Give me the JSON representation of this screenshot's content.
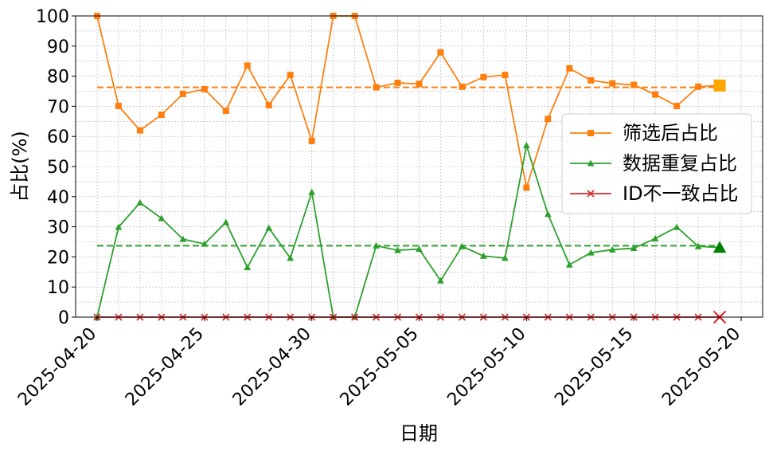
{
  "chart_data": {
    "type": "line",
    "xlabel": "日期",
    "ylabel": "占比(%)",
    "ylim": [
      0,
      100
    ],
    "yticks": [
      0,
      10,
      20,
      30,
      40,
      50,
      60,
      70,
      80,
      90,
      100
    ],
    "xlim": [
      "2025-04-19",
      "2025-05-21"
    ],
    "xticks": [
      "2025-04-20",
      "2025-04-25",
      "2025-04-30",
      "2025-05-05",
      "2025-05-10",
      "2025-05-15",
      "2025-05-20"
    ],
    "grid": true,
    "legend_position": "center-right",
    "x": [
      "2025-04-20",
      "2025-04-21",
      "2025-04-22",
      "2025-04-23",
      "2025-04-24",
      "2025-04-25",
      "2025-04-26",
      "2025-04-27",
      "2025-04-28",
      "2025-04-29",
      "2025-04-30",
      "2025-05-01",
      "2025-05-02",
      "2025-05-03",
      "2025-05-04",
      "2025-05-05",
      "2025-05-06",
      "2025-05-07",
      "2025-05-08",
      "2025-05-09",
      "2025-05-10",
      "2025-05-11",
      "2025-05-12",
      "2025-05-13",
      "2025-05-14",
      "2025-05-15",
      "2025-05-16",
      "2025-05-17",
      "2025-05-18",
      "2025-05-19"
    ],
    "series": [
      {
        "name": "筛选后占比",
        "color": "#ff7f0e",
        "marker": "square",
        "values": [
          100,
          70.1,
          62,
          67.2,
          74.1,
          75.7,
          68.5,
          83.5,
          70.4,
          80.4,
          58.5,
          100,
          100,
          76.3,
          77.8,
          77.4,
          87.9,
          76.5,
          79.7,
          80.4,
          43,
          65.8,
          82.6,
          78.6,
          77.6,
          77.1,
          73.9,
          70.1,
          76.5,
          76.9
        ],
        "mean": 76.3,
        "highlight_last": true
      },
      {
        "name": "数据重复占比",
        "color": "#2ca02c",
        "marker": "triangle",
        "values": [
          0,
          29.9,
          38,
          32.8,
          25.9,
          24.3,
          31.5,
          16.5,
          29.6,
          19.6,
          41.5,
          0,
          0,
          23.7,
          22.2,
          22.6,
          12.1,
          23.5,
          20.3,
          19.6,
          57,
          34.2,
          17.4,
          21.4,
          22.4,
          22.9,
          26.1,
          29.9,
          23.5,
          23.1
        ],
        "mean": 23.7,
        "highlight_last": true
      },
      {
        "name": "ID不一致占比",
        "color": "#d62728",
        "marker": "x",
        "values": [
          0,
          0,
          0,
          0,
          0,
          0,
          0,
          0,
          0,
          0,
          0,
          0,
          0,
          0,
          0,
          0,
          0,
          0,
          0,
          0,
          0,
          0,
          0,
          0,
          0,
          0,
          0,
          0,
          0,
          0
        ],
        "highlight_last": true
      }
    ]
  }
}
